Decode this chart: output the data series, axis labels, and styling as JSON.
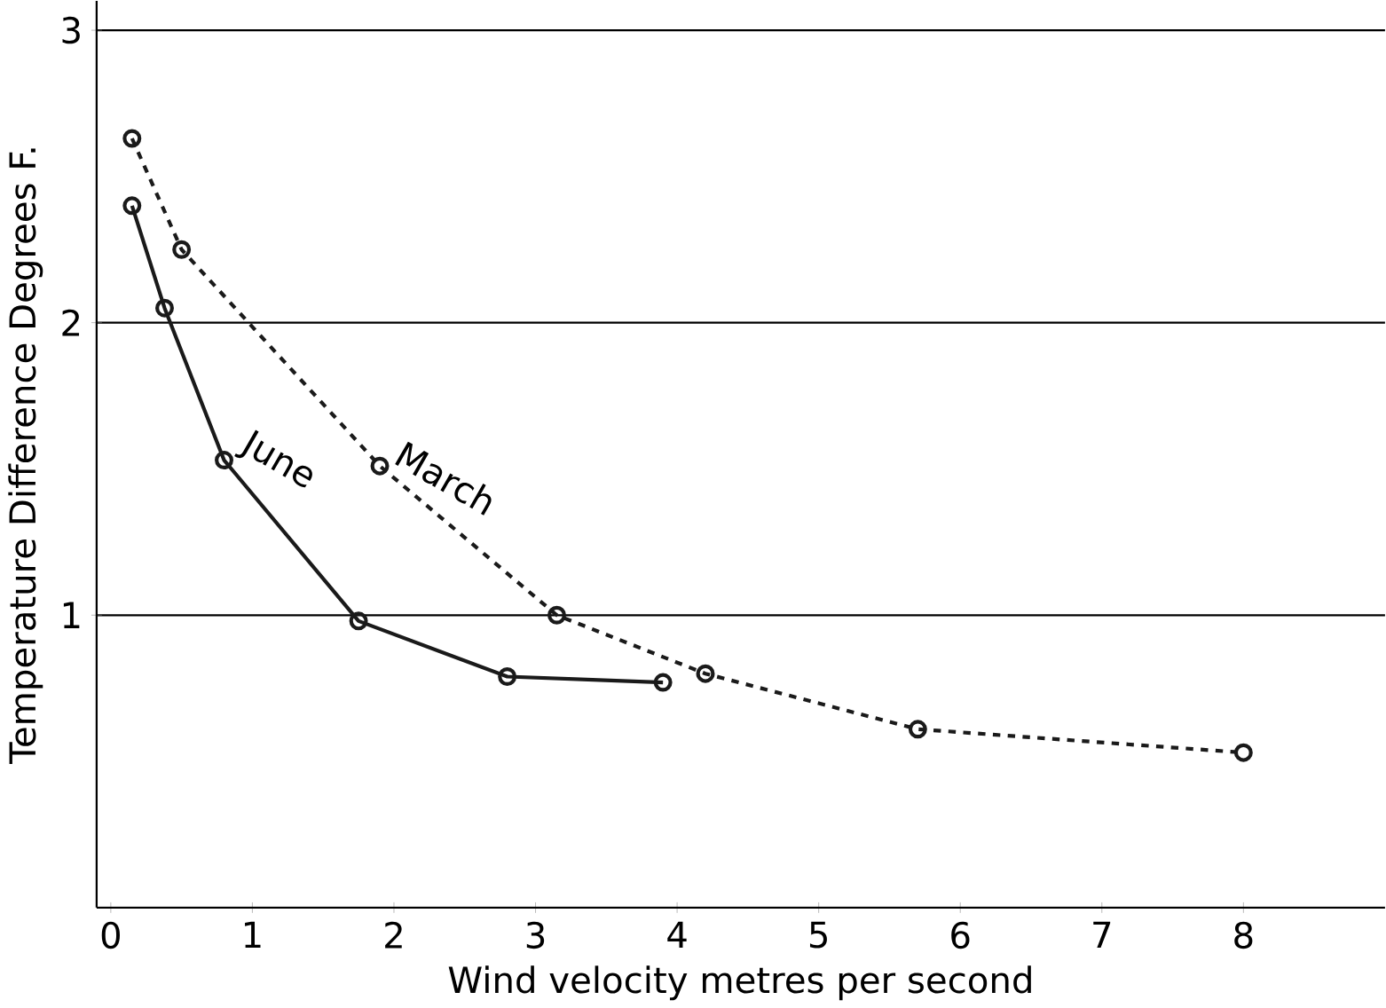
{
  "chart_data": {
    "type": "line",
    "xlabel": "Wind velocity metres per second",
    "ylabel": "Temperature Difference Degrees F.",
    "xlim": [
      -0.1,
      9
    ],
    "ylim": [
      0,
      3.1
    ],
    "xticks": [
      0,
      1,
      2,
      3,
      4,
      5,
      6,
      7,
      8
    ],
    "yticks": [
      1,
      2,
      3
    ],
    "grid": "y",
    "marker": "circle",
    "series": [
      {
        "name": "June",
        "color": "#1a1a1a",
        "line_style": "solid",
        "x": [
          0.15,
          0.38,
          0.8,
          1.75,
          2.8,
          3.9
        ],
        "values": [
          2.4,
          2.05,
          1.53,
          0.98,
          0.79,
          0.77
        ]
      },
      {
        "name": "March",
        "color": "#1a1a1a",
        "line_style": "dashed",
        "x": [
          0.15,
          0.5,
          1.9,
          3.15,
          4.2,
          5.7,
          8
        ],
        "values": [
          2.63,
          2.25,
          1.51,
          1.0,
          0.8,
          0.61,
          0.53
        ]
      }
    ]
  }
}
